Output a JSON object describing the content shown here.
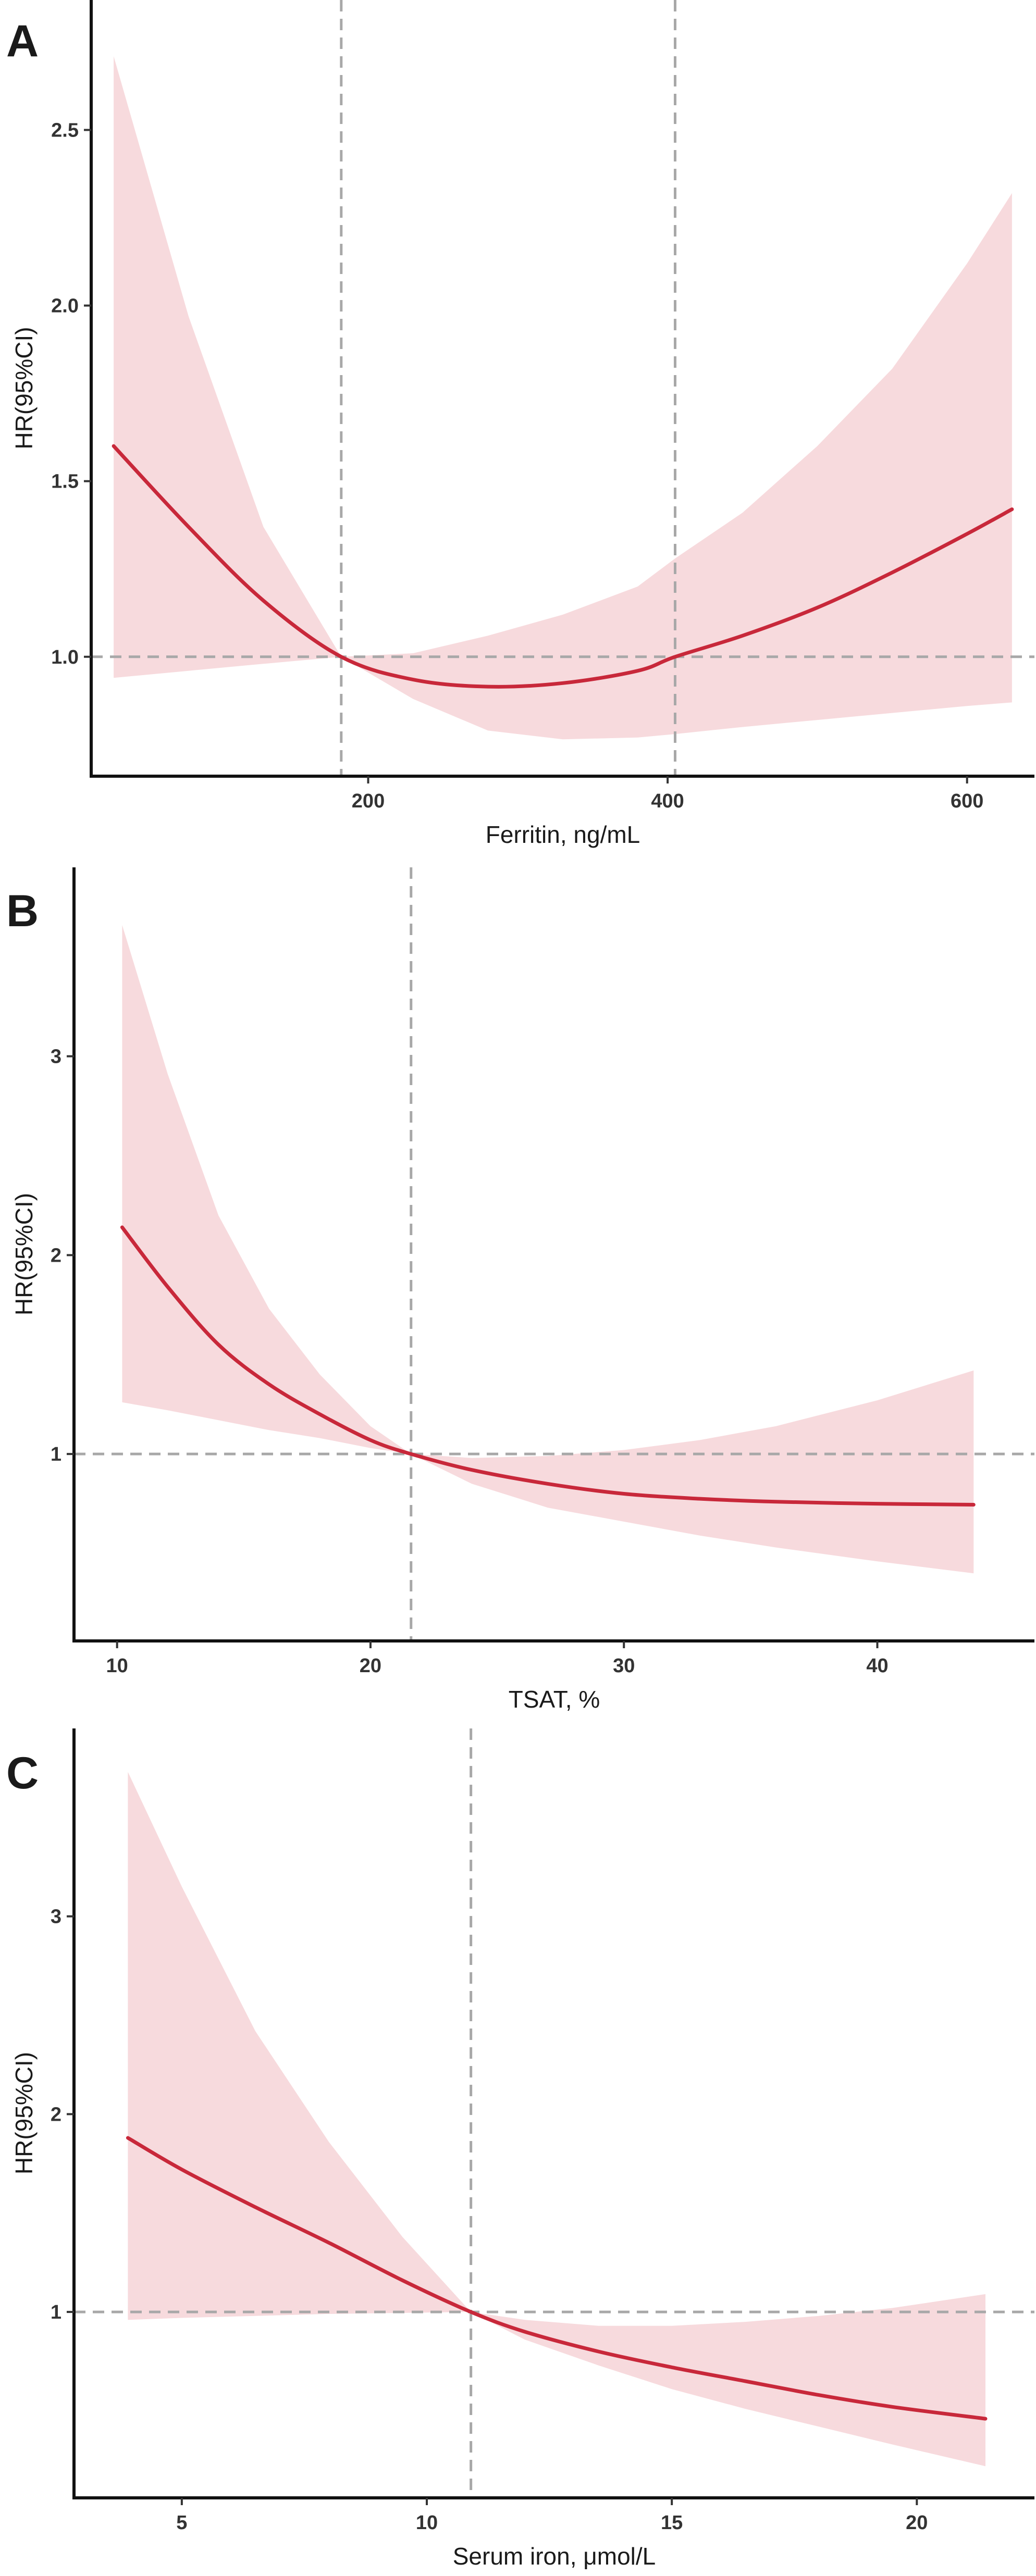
{
  "chart_data": [
    {
      "panel_label": "A",
      "type": "line",
      "xlabel": "Ferritin, ng/mL",
      "ylabel": "HR(95%CI)",
      "xlim": [
        15,
        645
      ],
      "ylim": [
        0.66,
        2.87
      ],
      "xticks": [
        200,
        400,
        600
      ],
      "yticks": [
        1.0,
        1.5,
        2.0,
        2.5
      ],
      "xtick_labels": [
        "200",
        "400",
        "600"
      ],
      "ytick_labels": [
        "1.0",
        "1.5",
        "2.0",
        "2.5"
      ],
      "reference_lines": {
        "vertical": [
          182,
          405
        ],
        "horizontal": [
          1.0
        ]
      },
      "series": [
        {
          "x": [
            30,
            80,
            130,
            182,
            230,
            280,
            330,
            380,
            405,
            450,
            500,
            550,
            600,
            630
          ],
          "y": [
            1.6,
            1.37,
            1.16,
            1.0,
            0.935,
            0.915,
            0.925,
            0.96,
            1.0,
            1.06,
            1.14,
            1.24,
            1.35,
            1.42
          ],
          "lower": [
            0.94,
            0.96,
            0.98,
            1.0,
            0.88,
            0.79,
            0.765,
            0.77,
            0.78,
            0.8,
            0.82,
            0.84,
            0.86,
            0.87
          ],
          "upper": [
            2.71,
            1.97,
            1.37,
            1.0,
            1.01,
            1.06,
            1.12,
            1.2,
            1.28,
            1.41,
            1.6,
            1.82,
            2.12,
            2.32
          ]
        }
      ],
      "colors": {
        "line": "#c8283a",
        "band": "#f7dadd",
        "reference": "#a8a8a8"
      },
      "grid": false,
      "legend": "none"
    },
    {
      "panel_label": "B",
      "type": "line",
      "xlabel": "TSAT, %",
      "ylabel": "HR(95%CI)",
      "xlim": [
        8.3,
        46.2
      ],
      "ylim": [
        0.06,
        3.95
      ],
      "xticks": [
        10,
        20,
        30,
        40
      ],
      "yticks": [
        1,
        2,
        3
      ],
      "xtick_labels": [
        "10",
        "20",
        "30",
        "40"
      ],
      "ytick_labels": [
        "1",
        "2",
        "3"
      ],
      "reference_lines": {
        "vertical": [
          21.6
        ],
        "horizontal": [
          1
        ]
      },
      "series": [
        {
          "x": [
            10.2,
            12,
            14,
            16,
            18,
            20,
            21.6,
            24,
            27,
            30,
            33,
            36,
            40,
            43.8
          ],
          "y": [
            2.14,
            1.84,
            1.55,
            1.35,
            1.2,
            1.07,
            1.0,
            0.92,
            0.85,
            0.8,
            0.775,
            0.76,
            0.75,
            0.745
          ],
          "lower": [
            1.26,
            1.22,
            1.17,
            1.12,
            1.08,
            1.03,
            1.0,
            0.85,
            0.73,
            0.66,
            0.59,
            0.53,
            0.46,
            0.4
          ],
          "upper": [
            3.66,
            2.91,
            2.2,
            1.73,
            1.4,
            1.14,
            1.0,
            0.98,
            0.99,
            1.02,
            1.07,
            1.14,
            1.27,
            1.42
          ]
        }
      ],
      "colors": {
        "line": "#c8283a",
        "band": "#f7dadd",
        "reference": "#a8a8a8"
      },
      "grid": false,
      "legend": "none"
    },
    {
      "panel_label": "C",
      "type": "line",
      "xlabel": "Serum iron, μmol/L",
      "ylabel": "HR(95%CI)",
      "xlim": [
        2.8,
        22.4
      ],
      "ylim": [
        0.06,
        3.95
      ],
      "xticks": [
        5,
        10,
        15,
        20
      ],
      "yticks": [
        1,
        2,
        3
      ],
      "xtick_labels": [
        "5",
        "10",
        "15",
        "20"
      ],
      "ytick_labels": [
        "1",
        "2",
        "3"
      ],
      "reference_lines": {
        "vertical": [
          10.9
        ],
        "horizontal": [
          1
        ]
      },
      "series": [
        {
          "x": [
            3.9,
            5,
            6.5,
            8,
            9.5,
            10.9,
            12,
            13.5,
            15,
            16.5,
            18,
            19.5,
            21.4
          ],
          "y": [
            1.88,
            1.72,
            1.53,
            1.35,
            1.16,
            1.0,
            0.9,
            0.8,
            0.72,
            0.65,
            0.58,
            0.52,
            0.46
          ],
          "lower": [
            0.96,
            0.97,
            0.98,
            0.99,
            0.995,
            1.0,
            0.86,
            0.73,
            0.61,
            0.51,
            0.42,
            0.33,
            0.22
          ],
          "upper": [
            3.73,
            3.15,
            2.42,
            1.86,
            1.38,
            1.0,
            0.96,
            0.93,
            0.93,
            0.95,
            0.98,
            1.02,
            1.09
          ]
        }
      ],
      "colors": {
        "line": "#c8283a",
        "band": "#f7dadd",
        "reference": "#a8a8a8"
      },
      "grid": false,
      "legend": "none"
    }
  ]
}
